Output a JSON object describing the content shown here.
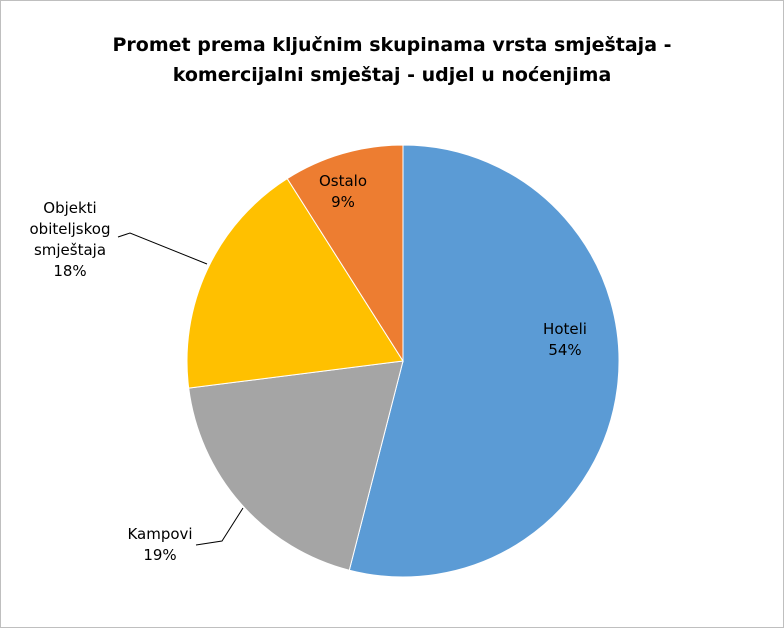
{
  "chart_data": {
    "type": "pie",
    "title": "Promet prema ključnim skupinama vrsta smještaja - komercijalni smještaj - udjel u noćenjima",
    "categories": [
      "Hoteli",
      "Kampovi",
      "Objekti obiteljskog smještaja",
      "Ostalo"
    ],
    "values": [
      54,
      19,
      18,
      9
    ],
    "value_labels": [
      "54%",
      "19%",
      "18%",
      "9%"
    ],
    "colors": [
      "#5b9bd5",
      "#a5a5a5",
      "#ffc000",
      "#ed7d31"
    ]
  }
}
